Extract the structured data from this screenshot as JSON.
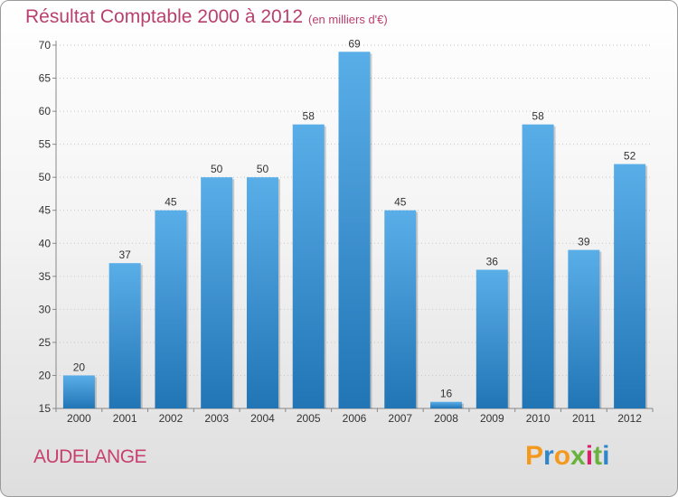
{
  "chart_data": {
    "type": "bar",
    "title": "Résultat Comptable 2000 à 2012",
    "subtitle": "(en milliers d'€)",
    "categories": [
      "2000",
      "2001",
      "2002",
      "2003",
      "2004",
      "2005",
      "2006",
      "2007",
      "2008",
      "2009",
      "2010",
      "2011",
      "2012"
    ],
    "values": [
      20,
      37,
      45,
      50,
      50,
      58,
      69,
      45,
      16,
      36,
      58,
      39,
      52
    ],
    "ylim": [
      15,
      70
    ],
    "yticks": [
      15,
      20,
      25,
      30,
      35,
      40,
      45,
      50,
      55,
      60,
      65,
      70
    ],
    "grid": true,
    "xlabel": "",
    "ylabel": "",
    "bar_color_top": "#5aaee8",
    "bar_color_bottom": "#2275b5"
  },
  "footer": {
    "commune": "AUDELANGE",
    "logo_text": "Proxiti",
    "logo_colors": [
      "#f39a1e",
      "#2f86c8",
      "#f39a1e",
      "#6ab23e",
      "#d4236b",
      "#6ab23e",
      "#2f86c8"
    ]
  }
}
